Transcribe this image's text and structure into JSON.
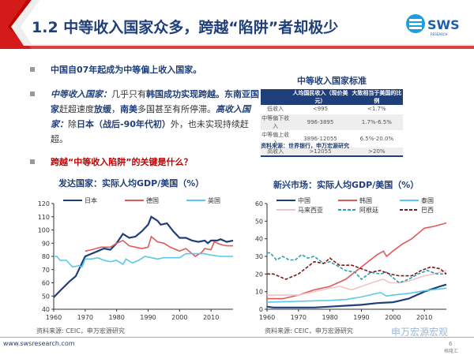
{
  "header": {
    "title": "1.2 中等收入国家众多，跨越“陷阱”者却极少",
    "logo_text": "SWS",
    "logo_sub": "RESEARCH",
    "accent": "#c00000",
    "brand": "#1f3f7a"
  },
  "bullets": [
    {
      "text": "中国自07年起成为中等偏上收入国家。"
    },
    {
      "parts": [
        "中等收入国家：",
        "几乎只有",
        "韩国成功实现跨越",
        "。",
        "东南亚国家",
        "赶超速度",
        "放缓",
        "，",
        "南美",
        "多国甚至有所停滞。",
        "高收入国家：",
        "除",
        "日本（战后-90年代初）",
        "外，也未实现持续赶超。"
      ]
    },
    {
      "text": "跨越“中等收入陷阱”的关键是什么？"
    }
  ],
  "table": {
    "title": "中等收入国家标准",
    "headers": [
      "",
      "人均国民收入（现价美元）",
      "大致相当于美国的比例"
    ],
    "rows": [
      [
        "低收入",
        "<995",
        "<1.7%"
      ],
      [
        "中等偏下收入",
        "996-3895",
        "1.7%-6.5%"
      ],
      [
        "中等偏上收入",
        "3896-12055",
        "6.5%-20.0%"
      ],
      [
        "高收入",
        ">12055",
        ">20%"
      ]
    ],
    "source": "资料来源：世界银行，申万宏源研究"
  },
  "chart_data": [
    {
      "type": "line",
      "title": "发达国家：实际人均GDP/美国（%）",
      "ylim": [
        40,
        120
      ],
      "yticks": [
        40,
        50,
        60,
        70,
        80,
        90,
        100,
        110,
        120
      ],
      "xlim": [
        1960,
        2017
      ],
      "xticks": [
        1960,
        1970,
        1980,
        1990,
        2000,
        2010
      ],
      "legend": "top",
      "grid": false,
      "series": [
        {
          "name": "日本",
          "color": "#1f3f7a",
          "dash": false,
          "points": [
            [
              1960,
              49
            ],
            [
              1962,
              54
            ],
            [
              1965,
              61
            ],
            [
              1967,
              65
            ],
            [
              1969,
              75
            ],
            [
              1970,
              80
            ],
            [
              1972,
              82
            ],
            [
              1974,
              84
            ],
            [
              1976,
              86
            ],
            [
              1978,
              85
            ],
            [
              1980,
              90
            ],
            [
              1982,
              97
            ],
            [
              1984,
              94
            ],
            [
              1986,
              95
            ],
            [
              1988,
              99
            ],
            [
              1990,
              104
            ],
            [
              1991,
              110
            ],
            [
              1993,
              107
            ],
            [
              1994,
              104
            ],
            [
              1996,
              105
            ],
            [
              1998,
              99
            ],
            [
              2000,
              94
            ],
            [
              2002,
              94
            ],
            [
              2004,
              92
            ],
            [
              2006,
              91
            ],
            [
              2008,
              92
            ],
            [
              2009,
              90
            ],
            [
              2010,
              92
            ],
            [
              2012,
              92
            ],
            [
              2013,
              93
            ],
            [
              2015,
              91
            ],
            [
              2017,
              92
            ]
          ]
        },
        {
          "name": "德国",
          "color": "#e05a5a",
          "dash": false,
          "points": [
            [
              1970,
              84
            ],
            [
              1972,
              85
            ],
            [
              1975,
              87
            ],
            [
              1978,
              87
            ],
            [
              1980,
              90
            ],
            [
              1982,
              92
            ],
            [
              1984,
              88
            ],
            [
              1986,
              87
            ],
            [
              1988,
              86
            ],
            [
              1990,
              87
            ],
            [
              1991,
              95
            ],
            [
              1993,
              91
            ],
            [
              1995,
              90
            ],
            [
              1997,
              87
            ],
            [
              2000,
              84
            ],
            [
              2002,
              86
            ],
            [
              2004,
              82
            ],
            [
              2005,
              80
            ],
            [
              2007,
              83
            ],
            [
              2008,
              86
            ],
            [
              2010,
              85
            ],
            [
              2011,
              91
            ],
            [
              2013,
              89
            ],
            [
              2015,
              88
            ],
            [
              2017,
              88
            ]
          ]
        },
        {
          "name": "英国",
          "color": "#5cc8e8",
          "dash": false,
          "points": [
            [
              1960,
              80
            ],
            [
              1961,
              80
            ],
            [
              1962,
              77
            ],
            [
              1964,
              77
            ],
            [
              1966,
              72
            ],
            [
              1968,
              73
            ],
            [
              1969,
              72
            ],
            [
              1970,
              78
            ],
            [
              1972,
              78
            ],
            [
              1974,
              79
            ],
            [
              1976,
              77
            ],
            [
              1978,
              76
            ],
            [
              1980,
              77
            ],
            [
              1982,
              74
            ],
            [
              1983,
              78
            ],
            [
              1985,
              75
            ],
            [
              1987,
              77
            ],
            [
              1989,
              80
            ],
            [
              1991,
              79
            ],
            [
              1993,
              78
            ],
            [
              1995,
              79
            ],
            [
              1997,
              79
            ],
            [
              2000,
              79
            ],
            [
              2002,
              82
            ],
            [
              2004,
              82
            ],
            [
              2006,
              82
            ],
            [
              2008,
              82
            ],
            [
              2010,
              81
            ],
            [
              2013,
              80
            ],
            [
              2015,
              80
            ],
            [
              2017,
              80
            ]
          ]
        }
      ],
      "source": "资料来源: CEIC，申万宏源研究"
    },
    {
      "type": "line",
      "title": "新兴市场：实际人均GDP/美国（%）",
      "ylim": [
        0,
        60
      ],
      "yticks": [
        0,
        10,
        20,
        30,
        40,
        50,
        60
      ],
      "xlim": [
        1960,
        2017
      ],
      "xticks": [
        1960,
        1970,
        1980,
        1990,
        2000,
        2010
      ],
      "legend": "top",
      "grid": false,
      "series": [
        {
          "name": "中国",
          "color": "#1f3f7a",
          "dash": false,
          "points": [
            [
              1960,
              1.5
            ],
            [
              1962,
              1
            ],
            [
              1975,
              1
            ],
            [
              1980,
              1.5
            ],
            [
              1985,
              2
            ],
            [
              1990,
              2.5
            ],
            [
              1995,
              3.5
            ],
            [
              2000,
              4
            ],
            [
              2005,
              6
            ],
            [
              2010,
              10
            ],
            [
              2015,
              13
            ],
            [
              2017,
              14
            ]
          ]
        },
        {
          "name": "韩国",
          "color": "#e05a5a",
          "dash": false,
          "points": [
            [
              1960,
              6
            ],
            [
              1965,
              6
            ],
            [
              1970,
              8
            ],
            [
              1975,
              11
            ],
            [
              1980,
              13
            ],
            [
              1985,
              17
            ],
            [
              1990,
              24
            ],
            [
              1995,
              31
            ],
            [
              1997,
              33
            ],
            [
              1998,
              30
            ],
            [
              2000,
              33
            ],
            [
              2003,
              37
            ],
            [
              2006,
              40
            ],
            [
              2010,
              46
            ],
            [
              2013,
              47
            ],
            [
              2017,
              49
            ]
          ]
        },
        {
          "name": "泰国",
          "color": "#5cc8e8",
          "dash": false,
          "points": [
            [
              1960,
              4
            ],
            [
              1970,
              4.5
            ],
            [
              1980,
              5
            ],
            [
              1985,
              5.5
            ],
            [
              1990,
              7
            ],
            [
              1995,
              9
            ],
            [
              1996,
              9.5
            ],
            [
              1998,
              7.5
            ],
            [
              2000,
              8
            ],
            [
              2005,
              9
            ],
            [
              2010,
              10.5
            ],
            [
              2017,
              12
            ]
          ]
        },
        {
          "name": "马来西亚",
          "color": "#f2c4c4",
          "dash": false,
          "points": [
            [
              1960,
              8
            ],
            [
              1970,
              8
            ],
            [
              1975,
              10
            ],
            [
              1980,
              12
            ],
            [
              1983,
              13
            ],
            [
              1987,
              11
            ],
            [
              1990,
              13
            ],
            [
              1995,
              16
            ],
            [
              1997,
              17
            ],
            [
              1999,
              15
            ],
            [
              2002,
              15
            ],
            [
              2005,
              16
            ],
            [
              2010,
              19
            ],
            [
              2013,
              20
            ],
            [
              2017,
              22
            ]
          ]
        },
        {
          "name": "阿根廷",
          "color": "#2aa0b0",
          "dash": true,
          "points": [
            [
              1960,
              32
            ],
            [
              1961,
              32
            ],
            [
              1963,
              28
            ],
            [
              1965,
              30
            ],
            [
              1967,
              28
            ],
            [
              1969,
              28
            ],
            [
              1971,
              31
            ],
            [
              1973,
              29
            ],
            [
              1975,
              30
            ],
            [
              1978,
              26
            ],
            [
              1980,
              27
            ],
            [
              1982,
              25
            ],
            [
              1985,
              22
            ],
            [
              1988,
              21
            ],
            [
              1990,
              17
            ],
            [
              1993,
              21
            ],
            [
              1996,
              20
            ],
            [
              1998,
              21
            ],
            [
              2002,
              15
            ],
            [
              2005,
              17
            ],
            [
              2008,
              20
            ],
            [
              2011,
              22
            ],
            [
              2014,
              20
            ],
            [
              2017,
              20
            ]
          ]
        },
        {
          "name": "巴西",
          "color": "#7a1a1a",
          "dash": true,
          "points": [
            [
              1960,
              20
            ],
            [
              1962,
              20
            ],
            [
              1966,
              17
            ],
            [
              1970,
              20
            ],
            [
              1975,
              27
            ],
            [
              1978,
              26
            ],
            [
              1980,
              29
            ],
            [
              1983,
              25
            ],
            [
              1987,
              25
            ],
            [
              1990,
              23
            ],
            [
              1993,
              21
            ],
            [
              1996,
              22
            ],
            [
              1999,
              20
            ],
            [
              2002,
              19
            ],
            [
              2006,
              19
            ],
            [
              2009,
              22
            ],
            [
              2012,
              24
            ],
            [
              2015,
              23
            ],
            [
              2017,
              20
            ]
          ]
        }
      ],
      "source": "资料来源: CEIC，申万宏源研究"
    }
  ],
  "footer": {
    "website": "www.swsresearch.com",
    "watermark": "申万宏源宏观",
    "watermark2": "格隆汇",
    "page": "6"
  }
}
